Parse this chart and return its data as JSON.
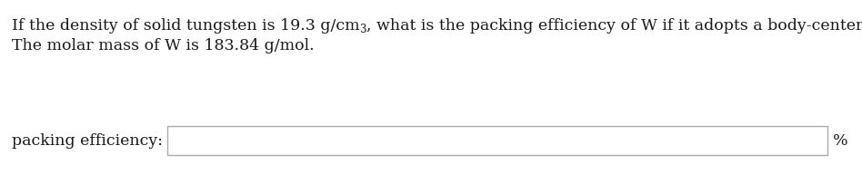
{
  "line1_pre": "If the density of solid tungsten is 19.3 g/cm",
  "superscript": "3",
  "line1_post": ", what is the packing efficiency of W if it adopts a body-centered cubic unit cell?",
  "line2": "The molar mass of W is 183.84 g/mol.",
  "label": "packing efficiency:",
  "unit": "%",
  "bg_color": "#ffffff",
  "text_color": "#1a1a1a",
  "box_border_color": "#aaaaaa",
  "font_size": 12.5,
  "sup_font_size": 8.5,
  "fig_width": 9.48,
  "fig_height": 1.93,
  "dpi": 100
}
